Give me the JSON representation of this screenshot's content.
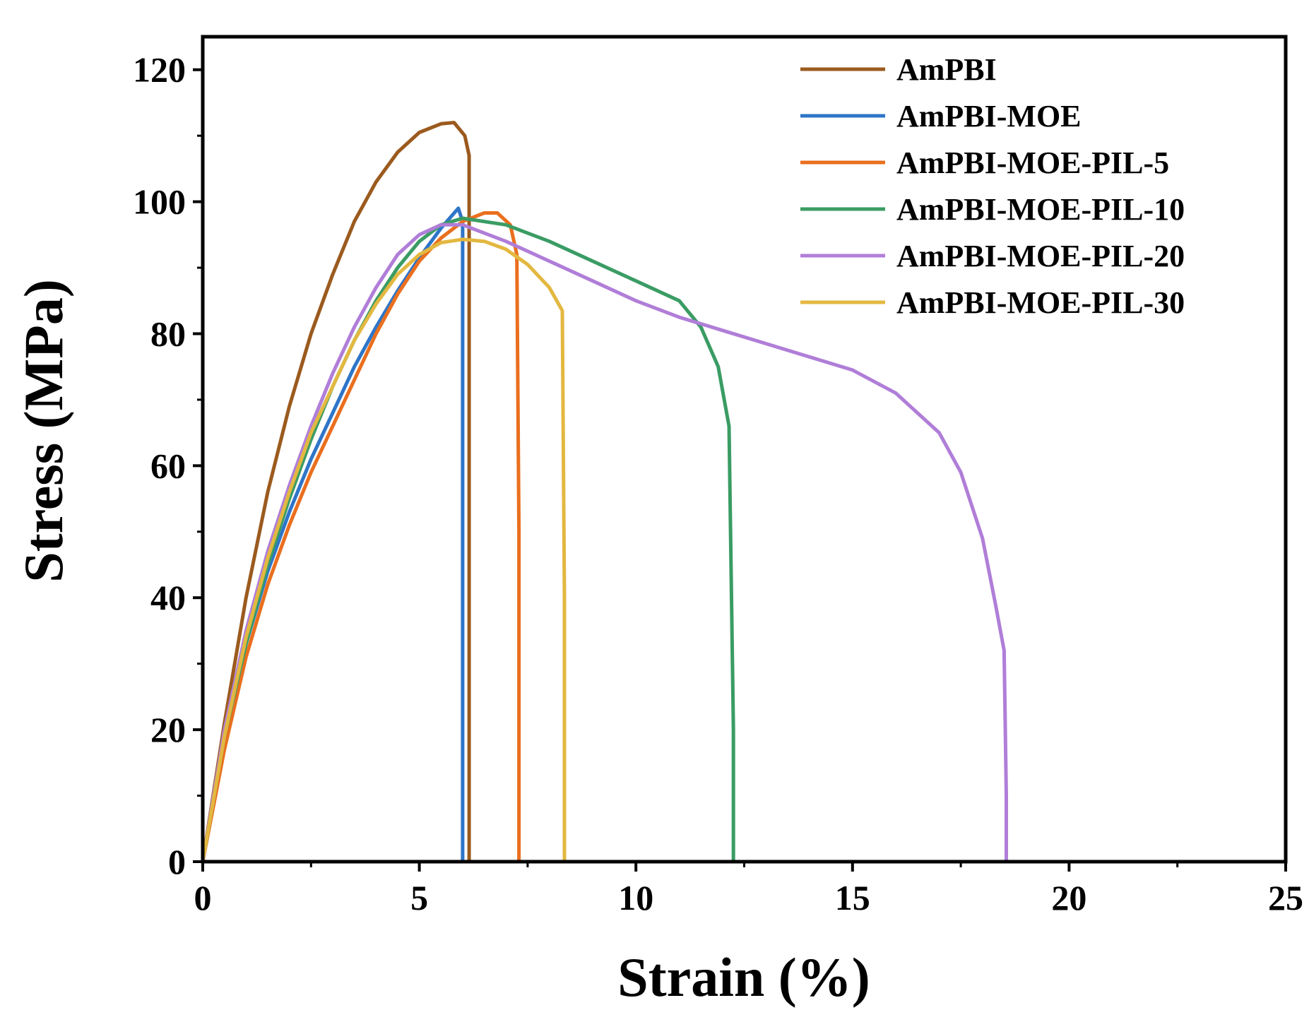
{
  "chart_data": {
    "type": "line",
    "title": "",
    "xlabel": "Strain (%)",
    "ylabel": "Stress (MPa)",
    "xlim": [
      0,
      25
    ],
    "ylim": [
      0,
      125
    ],
    "xticks": [
      0,
      5,
      10,
      15,
      20,
      25
    ],
    "yticks": [
      0,
      20,
      40,
      60,
      80,
      100,
      120
    ],
    "grid": false,
    "legend_position": "top-right",
    "series": [
      {
        "name": "AmPBI",
        "color": "#9b5a1e",
        "x": [
          0,
          0.5,
          1,
          1.5,
          2,
          2.5,
          3,
          3.5,
          4,
          4.5,
          5,
          5.5,
          5.8,
          6.05,
          6.15,
          6.15,
          6.15
        ],
        "y": [
          0,
          21,
          40,
          56,
          69,
          80,
          89,
          97,
          103,
          107.5,
          110.5,
          111.8,
          112,
          110,
          107,
          60,
          0
        ]
      },
      {
        "name": "AmPBI-MOE",
        "color": "#2e75c8",
        "x": [
          0,
          0.5,
          1,
          1.5,
          2,
          2.5,
          3,
          3.5,
          4,
          4.5,
          5,
          5.5,
          5.9,
          6.0,
          6.0,
          6.0
        ],
        "y": [
          0,
          19,
          33,
          44,
          53,
          61,
          68,
          75,
          81,
          86.5,
          91.5,
          96,
          99,
          97,
          50,
          0
        ]
      },
      {
        "name": "AmPBI-MOE-PIL-5",
        "color": "#ea6f1e",
        "x": [
          0,
          0.5,
          1,
          1.5,
          2,
          2.5,
          3,
          3.5,
          4,
          4.5,
          5,
          5.5,
          6,
          6.5,
          6.8,
          7.1,
          7.25,
          7.3,
          7.3
        ],
        "y": [
          0,
          17,
          31,
          42,
          51,
          59,
          66,
          73,
          80,
          86,
          91,
          94.5,
          97,
          98.3,
          98.3,
          96.5,
          92,
          50,
          0
        ]
      },
      {
        "name": "AmPBI-MOE-PIL-10",
        "color": "#3a9c64",
        "x": [
          0,
          0.5,
          1,
          1.5,
          2,
          2.5,
          3,
          3.5,
          4,
          4.5,
          5,
          5.5,
          6,
          7,
          8,
          9,
          10,
          11,
          11.5,
          11.9,
          12.15,
          12.25,
          12.25
        ],
        "y": [
          0,
          19,
          33,
          45,
          55,
          64,
          72,
          79,
          85,
          90,
          94,
          96.5,
          97.5,
          96.5,
          94,
          91,
          88,
          85,
          81,
          75,
          66,
          20,
          0
        ]
      },
      {
        "name": "AmPBI-MOE-PIL-20",
        "color": "#b07ed8",
        "x": [
          0,
          0.5,
          1,
          1.5,
          2,
          2.5,
          3,
          3.5,
          4,
          4.5,
          5,
          5.5,
          6,
          7,
          8,
          9,
          10,
          11,
          12,
          13,
          14,
          15,
          16,
          17,
          17.5,
          18,
          18.3,
          18.5,
          18.55,
          18.55
        ],
        "y": [
          0,
          20,
          35,
          47,
          57,
          66,
          74,
          81,
          87,
          92,
          95,
          96.5,
          96.5,
          94,
          91,
          88,
          85,
          82.5,
          80.5,
          78.5,
          76.5,
          74.5,
          71,
          65,
          59,
          49,
          39,
          32,
          10,
          0
        ]
      },
      {
        "name": "AmPBI-MOE-PIL-30",
        "color": "#e3b840",
        "x": [
          0,
          0.5,
          1,
          1.5,
          2,
          2.5,
          3,
          3.5,
          4,
          4.5,
          5,
          5.5,
          6,
          6.5,
          7,
          7.5,
          8,
          8.3,
          8.35,
          8.35
        ],
        "y": [
          0,
          19,
          34,
          46,
          56,
          65,
          72,
          79,
          84.5,
          89,
          92,
          93.8,
          94.3,
          94,
          92.8,
          90.5,
          87,
          83.5,
          40,
          0
        ]
      }
    ]
  }
}
